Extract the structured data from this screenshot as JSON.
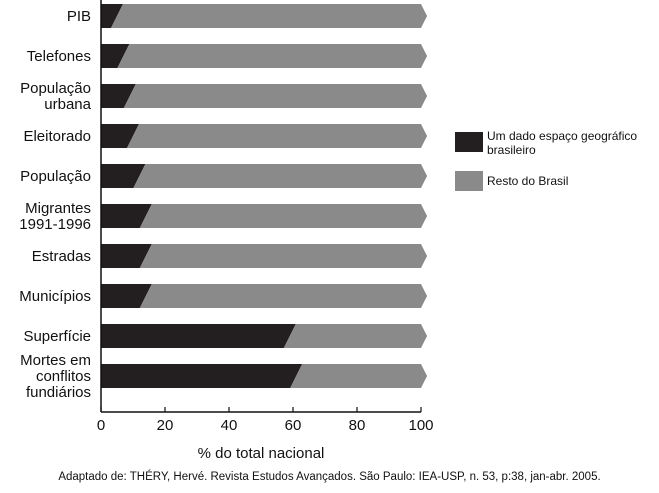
{
  "chart_data": {
    "type": "bar",
    "orientation": "horizontal",
    "stacked": true,
    "categories": [
      [
        "PIB"
      ],
      [
        "Telefones"
      ],
      [
        "População",
        "urbana"
      ],
      [
        "Eleitorado"
      ],
      [
        "População"
      ],
      [
        "Migrantes",
        "1991-1996"
      ],
      [
        "Estradas"
      ],
      [
        "Municípios"
      ],
      [
        "Superfície"
      ],
      [
        "Mortes em",
        "conflitos",
        "fundiários"
      ]
    ],
    "series": [
      {
        "name": "Um dado espaço geográfico brasileiro",
        "color": "#231f20",
        "values": [
          5,
          7,
          9,
          10,
          12,
          14,
          14,
          14,
          59,
          61
        ]
      },
      {
        "name": "Resto do Brasil",
        "color": "#8a8a8a",
        "values": [
          95,
          93,
          91,
          90,
          88,
          86,
          86,
          86,
          41,
          39
        ]
      }
    ],
    "xlabel": "% do total nacional",
    "xlim": [
      0,
      100
    ],
    "xticks": [
      0,
      20,
      40,
      60,
      80,
      100
    ],
    "legend_position": "right",
    "legend_lines": [
      [
        "Um dado espaço geográfico",
        "brasileiro"
      ],
      [
        "Resto do Brasil"
      ]
    ],
    "caption": "Adaptado de: THÉRY, Hervé. Revista Estudos Avançados. São Paulo: IEA-USP, n. 53, p:38, jan-abr. 2005."
  }
}
